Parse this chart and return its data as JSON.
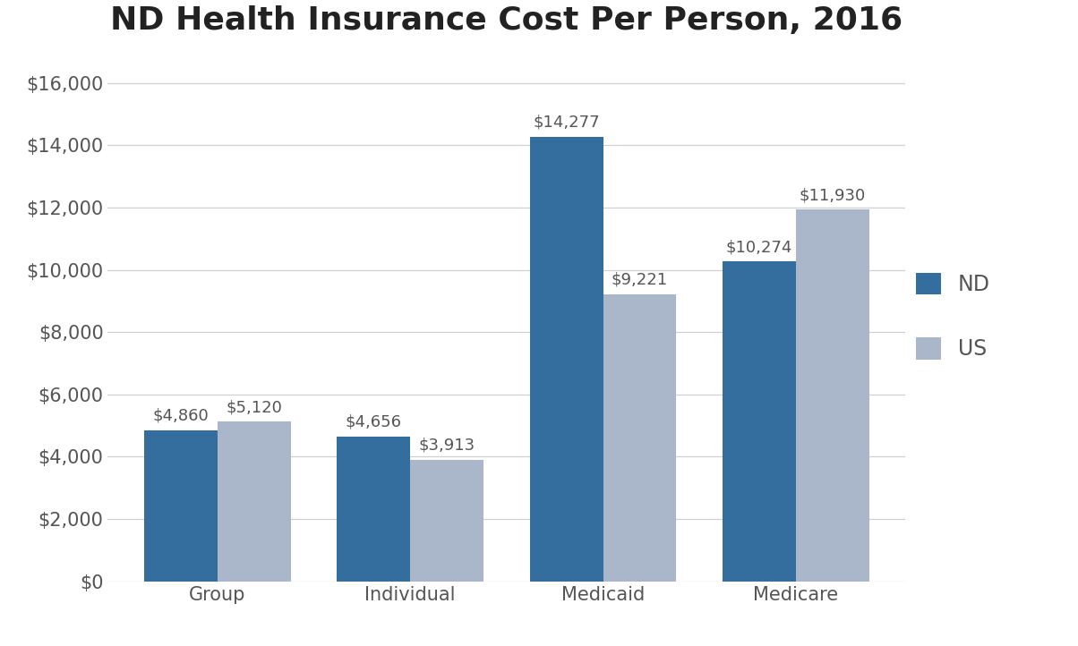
{
  "title": "ND Health Insurance Cost Per Person, 2016",
  "categories": [
    "Group",
    "Individual",
    "Medicaid",
    "Medicare"
  ],
  "nd_values": [
    4860,
    4656,
    14277,
    10274
  ],
  "us_values": [
    5120,
    3913,
    9221,
    11930
  ],
  "nd_color": "#336E9E",
  "us_color": "#AAB7CB",
  "ylim": [
    0,
    17000
  ],
  "yticks": [
    0,
    2000,
    4000,
    6000,
    8000,
    10000,
    12000,
    14000,
    16000
  ],
  "bar_width": 0.38,
  "legend_labels": [
    "ND",
    "US"
  ],
  "title_fontsize": 26,
  "tick_fontsize": 15,
  "label_fontsize": 13,
  "legend_fontsize": 17,
  "background_color": "#ffffff",
  "grid_color": "#d0d0d0",
  "text_color": "#555555"
}
